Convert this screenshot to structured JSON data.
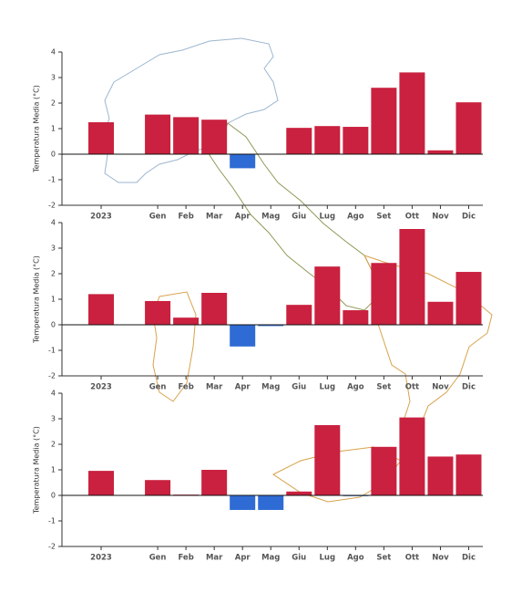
{
  "chart_data": [
    {
      "type": "bar",
      "y_label": "Temperatura Media (°C)",
      "categories": [
        "2023",
        null,
        "Gen",
        "Feb",
        "Mar",
        "Apr",
        "Mag",
        "Giu",
        "Lug",
        "Ago",
        "Set",
        "Ott",
        "Nov",
        "Dic"
      ],
      "values": [
        1.25,
        null,
        1.55,
        1.45,
        1.35,
        -0.55,
        0,
        1.03,
        1.1,
        1.07,
        2.6,
        3.2,
        0.15,
        2.03
      ],
      "ylim": [
        -2,
        4
      ],
      "yticks": [
        -2,
        -1,
        0,
        1,
        2,
        3,
        4
      ],
      "positive_color": "#c9213f",
      "negative_color": "#2f6bd4"
    },
    {
      "type": "bar",
      "y_label": "Temperatura Media (°C)",
      "categories": [
        "2023",
        null,
        "Gen",
        "Feb",
        "Mar",
        "Apr",
        "Mag",
        "Giu",
        "Lug",
        "Ago",
        "Set",
        "Ott",
        "Nov",
        "Dic"
      ],
      "values": [
        1.2,
        null,
        0.93,
        0.28,
        1.25,
        -0.85,
        -0.05,
        0.78,
        2.28,
        0.57,
        2.42,
        3.75,
        0.9,
        2.07
      ],
      "ylim": [
        -2,
        4
      ],
      "yticks": [
        -2,
        -1,
        0,
        1,
        2,
        3,
        4
      ],
      "positive_color": "#c9213f",
      "negative_color": "#2f6bd4"
    },
    {
      "type": "bar",
      "y_label": "Temperatura Media (°C)",
      "categories": [
        "2023",
        null,
        "Gen",
        "Feb",
        "Mar",
        "Apr",
        "Mag",
        "Giu",
        "Lug",
        "Ago",
        "Set",
        "Ott",
        "Nov",
        "Dic"
      ],
      "values": [
        0.96,
        null,
        0.6,
        0.03,
        1.0,
        -0.57,
        -0.57,
        0.15,
        2.75,
        -0.03,
        1.9,
        3.05,
        1.52,
        1.6
      ],
      "ylim": [
        -2,
        4
      ],
      "yticks": [
        -2,
        -1,
        0,
        1,
        2,
        3,
        4
      ],
      "positive_color": "#c9213f",
      "negative_color": "#2f6bd4"
    }
  ]
}
